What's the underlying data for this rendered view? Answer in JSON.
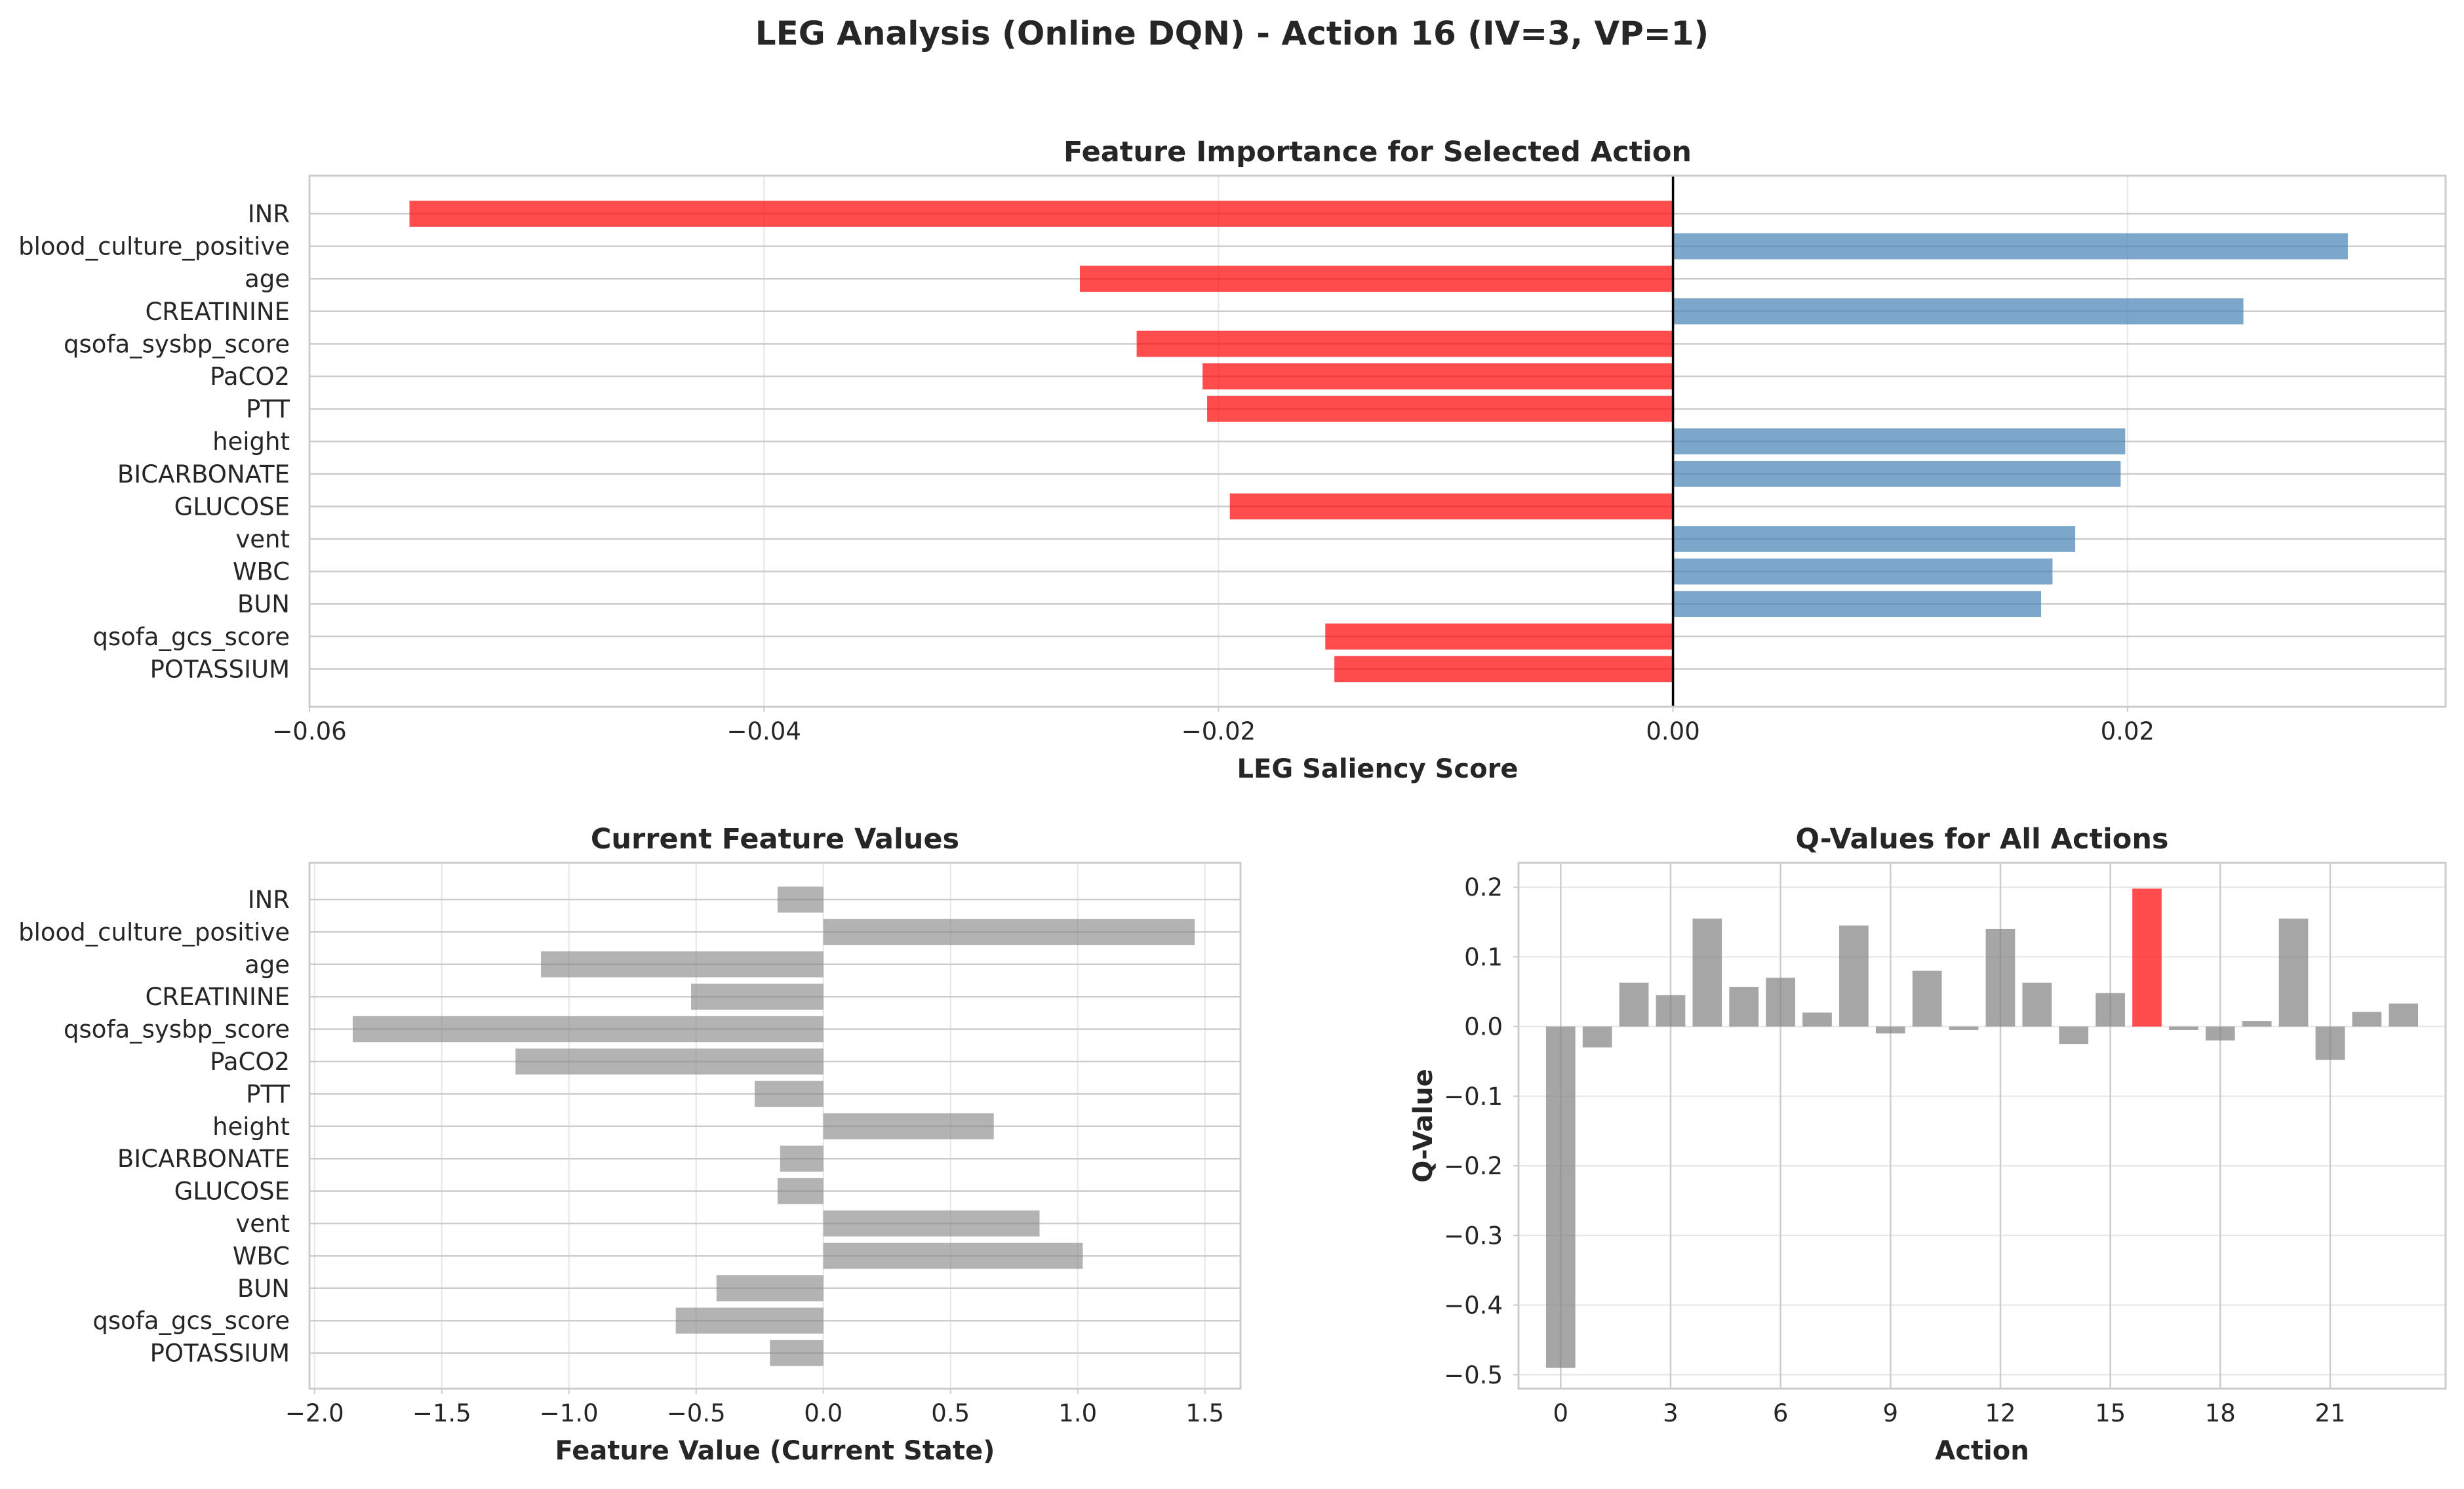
{
  "figure": {
    "suptitle": "LEG Analysis (Online DQN) - Action 16 (IV=3, VP=1)"
  },
  "chart_data": [
    {
      "type": "bar",
      "orientation": "horizontal",
      "title": "Feature Importance for Selected Action",
      "xlabel": "LEG Saliency Score",
      "ylabel": "",
      "categories": [
        "INR",
        "blood_culture_positive",
        "age",
        "CREATININE",
        "qsofa_sysbp_score",
        "PaCO2",
        "PTT",
        "height",
        "BICARBONATE",
        "GLUCOSE",
        "vent",
        "WBC",
        "BUN",
        "qsofa_gcs_score",
        "POTASSIUM"
      ],
      "values": [
        -0.0556,
        0.0297,
        -0.0261,
        0.0251,
        -0.0236,
        -0.0207,
        -0.0205,
        0.0199,
        0.0197,
        -0.0195,
        0.0177,
        0.0167,
        0.0162,
        -0.0153,
        -0.0149
      ],
      "xlim": [
        -0.06,
        0.034
      ],
      "xticks": [
        -0.06,
        -0.04,
        -0.02,
        0.0,
        0.02
      ],
      "xtick_labels": [
        "−0.06",
        "−0.04",
        "−0.02",
        "0.00",
        "0.02"
      ],
      "colors": {
        "positive": "#4682b4",
        "negative": "#ff0000"
      },
      "grid": true
    },
    {
      "type": "bar",
      "orientation": "horizontal",
      "title": "Current Feature Values",
      "xlabel": "Feature Value (Current State)",
      "ylabel": "",
      "categories": [
        "INR",
        "blood_culture_positive",
        "age",
        "CREATININE",
        "qsofa_sysbp_score",
        "PaCO2",
        "PTT",
        "height",
        "BICARBONATE",
        "GLUCOSE",
        "vent",
        "WBC",
        "BUN",
        "qsofa_gcs_score",
        "POTASSIUM"
      ],
      "values": [
        -0.18,
        1.46,
        -1.11,
        -0.52,
        -1.85,
        -1.21,
        -0.27,
        0.67,
        -0.17,
        -0.18,
        0.85,
        1.02,
        -0.42,
        -0.58,
        -0.21
      ],
      "xlim": [
        -2.02,
        1.64
      ],
      "xticks": [
        -2.0,
        -1.5,
        -1.0,
        -0.5,
        0.0,
        0.5,
        1.0,
        1.5
      ],
      "xtick_labels": [
        "−2.0",
        "−1.5",
        "−1.0",
        "−0.5",
        "0.0",
        "0.5",
        "1.0",
        "1.5"
      ],
      "colors": {
        "bar": "#808080"
      },
      "grid": true
    },
    {
      "type": "bar",
      "title": "Q-Values for All Actions",
      "xlabel": "Action",
      "ylabel": "Q-Value",
      "x": [
        0,
        1,
        2,
        3,
        4,
        5,
        6,
        7,
        8,
        9,
        10,
        11,
        12,
        13,
        14,
        15,
        16,
        17,
        18,
        19,
        20,
        21,
        22,
        23
      ],
      "values": [
        -0.49,
        -0.03,
        0.063,
        0.045,
        0.155,
        0.057,
        0.07,
        0.02,
        0.145,
        -0.01,
        0.08,
        -0.005,
        0.14,
        0.063,
        -0.025,
        0.048,
        0.198,
        -0.005,
        -0.02,
        0.008,
        0.155,
        -0.048,
        0.021,
        0.033
      ],
      "highlight_index": 16,
      "xlim": [
        -1.15,
        24.15
      ],
      "ylim": [
        -0.52,
        0.235
      ],
      "xticks": [
        0,
        3,
        6,
        9,
        12,
        15,
        18,
        21
      ],
      "yticks": [
        -0.5,
        -0.4,
        -0.3,
        -0.2,
        -0.1,
        0.0,
        0.1,
        0.2
      ],
      "ytick_labels": [
        "−0.5",
        "−0.4",
        "−0.3",
        "−0.2",
        "−0.1",
        "0.0",
        "0.1",
        "0.2"
      ],
      "colors": {
        "bar": "#808080",
        "highlight": "#ff0000"
      },
      "grid": true
    }
  ]
}
